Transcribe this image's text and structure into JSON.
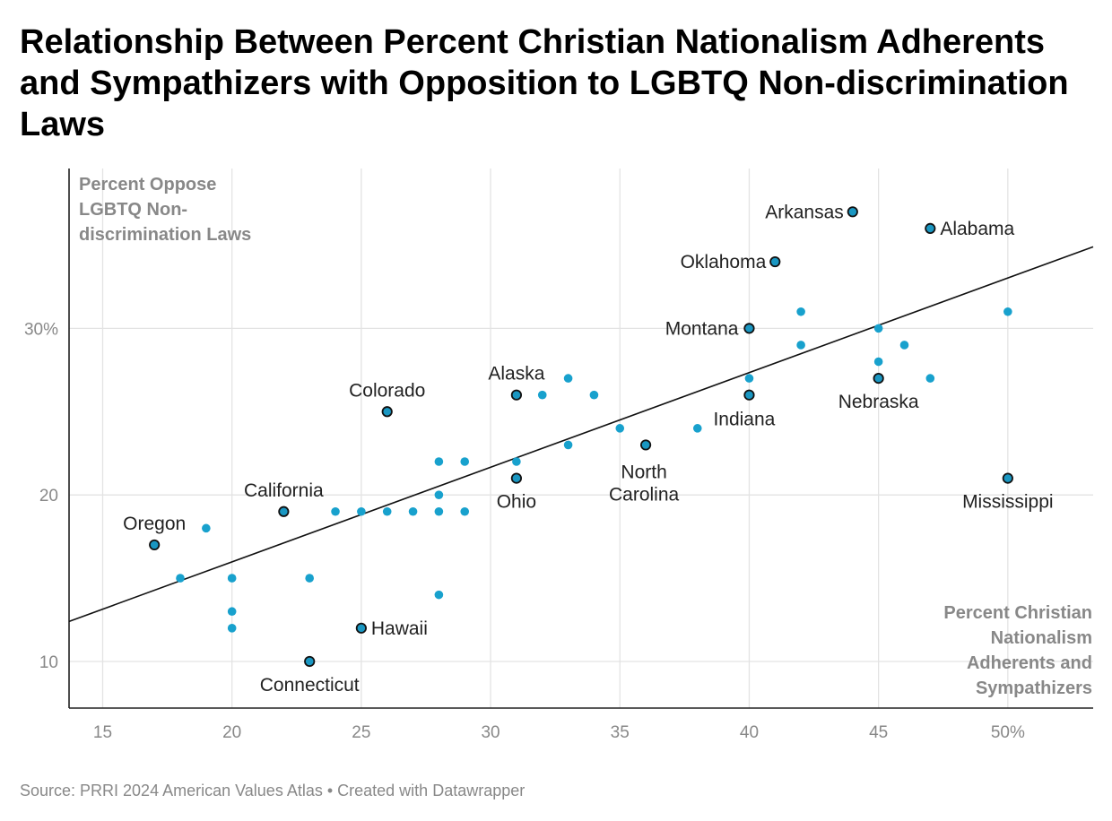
{
  "title": "Relationship Between Percent Christian Nationalism Adherents and Sympathizers with Opposition to LGBTQ Non-discrimination Laws",
  "source": "Source: PRRI 2024 American Values Atlas • Created with Datawrapper",
  "chart_data": {
    "type": "scatter",
    "title": "Relationship Between Percent Christian Nationalism Adherents and Sympathizers with Opposition to LGBTQ Non-discrimination Laws",
    "xlabel_lines": [
      "Percent Christian",
      "Nationalism",
      "Adherents and",
      "Sympathizers"
    ],
    "ylabel_lines": [
      "Percent Oppose",
      "LGBTQ Non-",
      "discrimination Laws"
    ],
    "xlim": [
      13.7,
      53.3
    ],
    "ylim": [
      7.2,
      39.6
    ],
    "x_ticks": [
      15,
      20,
      25,
      30,
      35,
      40,
      45,
      50
    ],
    "x_tick_labels": [
      "15",
      "20",
      "25",
      "30",
      "35",
      "40",
      "45",
      "50%"
    ],
    "y_ticks": [
      10,
      20,
      30
    ],
    "y_tick_labels": [
      "10",
      "20",
      "30%"
    ],
    "grid": true,
    "colors": {
      "point": "#18a1cd",
      "labeled_point": "#1a97c2",
      "trend": "#111111",
      "outline": "#111111"
    },
    "trendline": {
      "x": [
        13.7,
        53.3
      ],
      "y": [
        12.4,
        34.9
      ]
    },
    "labeled_points": [
      {
        "label": [
          "Arkansas"
        ],
        "x": 44,
        "y": 37
      },
      {
        "label": [
          "Alabama"
        ],
        "x": 47,
        "y": 36
      },
      {
        "label": [
          "Oklahoma"
        ],
        "x": 41,
        "y": 34
      },
      {
        "label": [
          "Montana"
        ],
        "x": 40,
        "y": 30
      },
      {
        "label": [
          "Nebraska"
        ],
        "x": 45,
        "y": 27
      },
      {
        "label": [
          "Indiana"
        ],
        "x": 40,
        "y": 26
      },
      {
        "label": [
          "Alaska"
        ],
        "x": 31,
        "y": 26
      },
      {
        "label": [
          "Colorado"
        ],
        "x": 26,
        "y": 25
      },
      {
        "label": [
          "North",
          "Carolina"
        ],
        "x": 36,
        "y": 23
      },
      {
        "label": [
          "Ohio"
        ],
        "x": 31,
        "y": 21
      },
      {
        "label": [
          "Mississippi"
        ],
        "x": 50,
        "y": 21
      },
      {
        "label": [
          "California"
        ],
        "x": 22,
        "y": 19
      },
      {
        "label": [
          "Oregon"
        ],
        "x": 17,
        "y": 17
      },
      {
        "label": [
          "Hawaii"
        ],
        "x": 25,
        "y": 12
      },
      {
        "label": [
          "Connecticut"
        ],
        "x": 23,
        "y": 10
      }
    ],
    "points": [
      {
        "x": 19,
        "y": 18
      },
      {
        "x": 18,
        "y": 15
      },
      {
        "x": 20,
        "y": 15
      },
      {
        "x": 20,
        "y": 13
      },
      {
        "x": 20,
        "y": 12
      },
      {
        "x": 23,
        "y": 15
      },
      {
        "x": 24,
        "y": 19
      },
      {
        "x": 25,
        "y": 19
      },
      {
        "x": 26,
        "y": 19
      },
      {
        "x": 27,
        "y": 19
      },
      {
        "x": 28,
        "y": 19
      },
      {
        "x": 28,
        "y": 20
      },
      {
        "x": 28,
        "y": 22
      },
      {
        "x": 28,
        "y": 14
      },
      {
        "x": 29,
        "y": 22
      },
      {
        "x": 29,
        "y": 19
      },
      {
        "x": 31,
        "y": 22
      },
      {
        "x": 32,
        "y": 26
      },
      {
        "x": 33,
        "y": 27
      },
      {
        "x": 34,
        "y": 26
      },
      {
        "x": 33,
        "y": 23
      },
      {
        "x": 35,
        "y": 24
      },
      {
        "x": 38,
        "y": 24
      },
      {
        "x": 40,
        "y": 27
      },
      {
        "x": 42,
        "y": 31
      },
      {
        "x": 42,
        "y": 29
      },
      {
        "x": 45,
        "y": 30
      },
      {
        "x": 45,
        "y": 28
      },
      {
        "x": 46,
        "y": 29
      },
      {
        "x": 47,
        "y": 27
      },
      {
        "x": 50,
        "y": 31
      }
    ]
  }
}
